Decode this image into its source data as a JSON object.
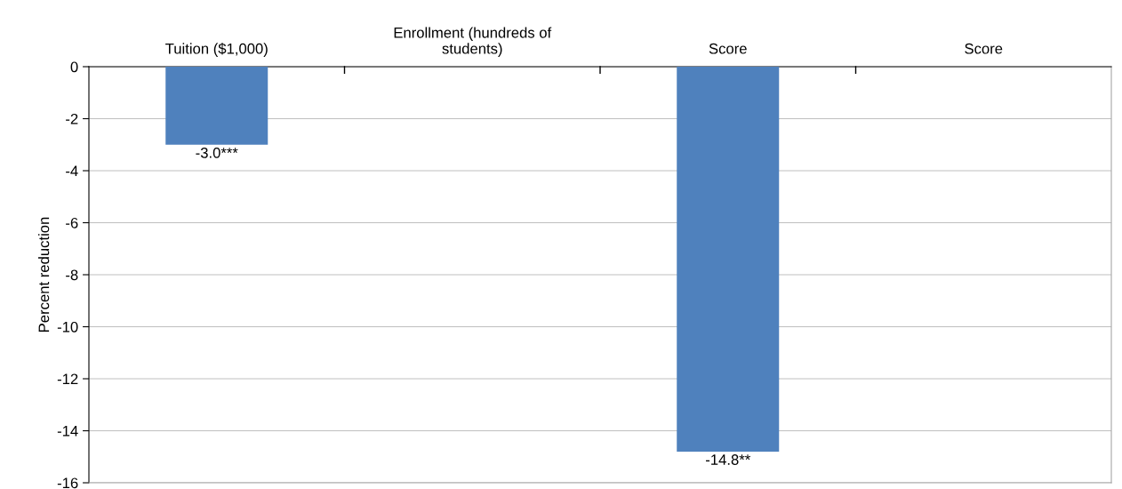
{
  "chart_data": {
    "type": "bar",
    "ylabel": "Percent reduction",
    "categories": [
      "Tuition ($1,000)",
      "Enrollment (hundreds of students)",
      "Score",
      "Score"
    ],
    "values": [
      -3.0,
      null,
      -14.8,
      null
    ],
    "value_labels": [
      "-3.0***",
      null,
      "-14.8**",
      null
    ],
    "color": "#4f81bd",
    "ylim": [
      -16,
      0
    ],
    "yticks": [
      -16,
      -14,
      -12,
      -10,
      -8,
      -6,
      -4,
      -2,
      0
    ],
    "grid": "y"
  }
}
